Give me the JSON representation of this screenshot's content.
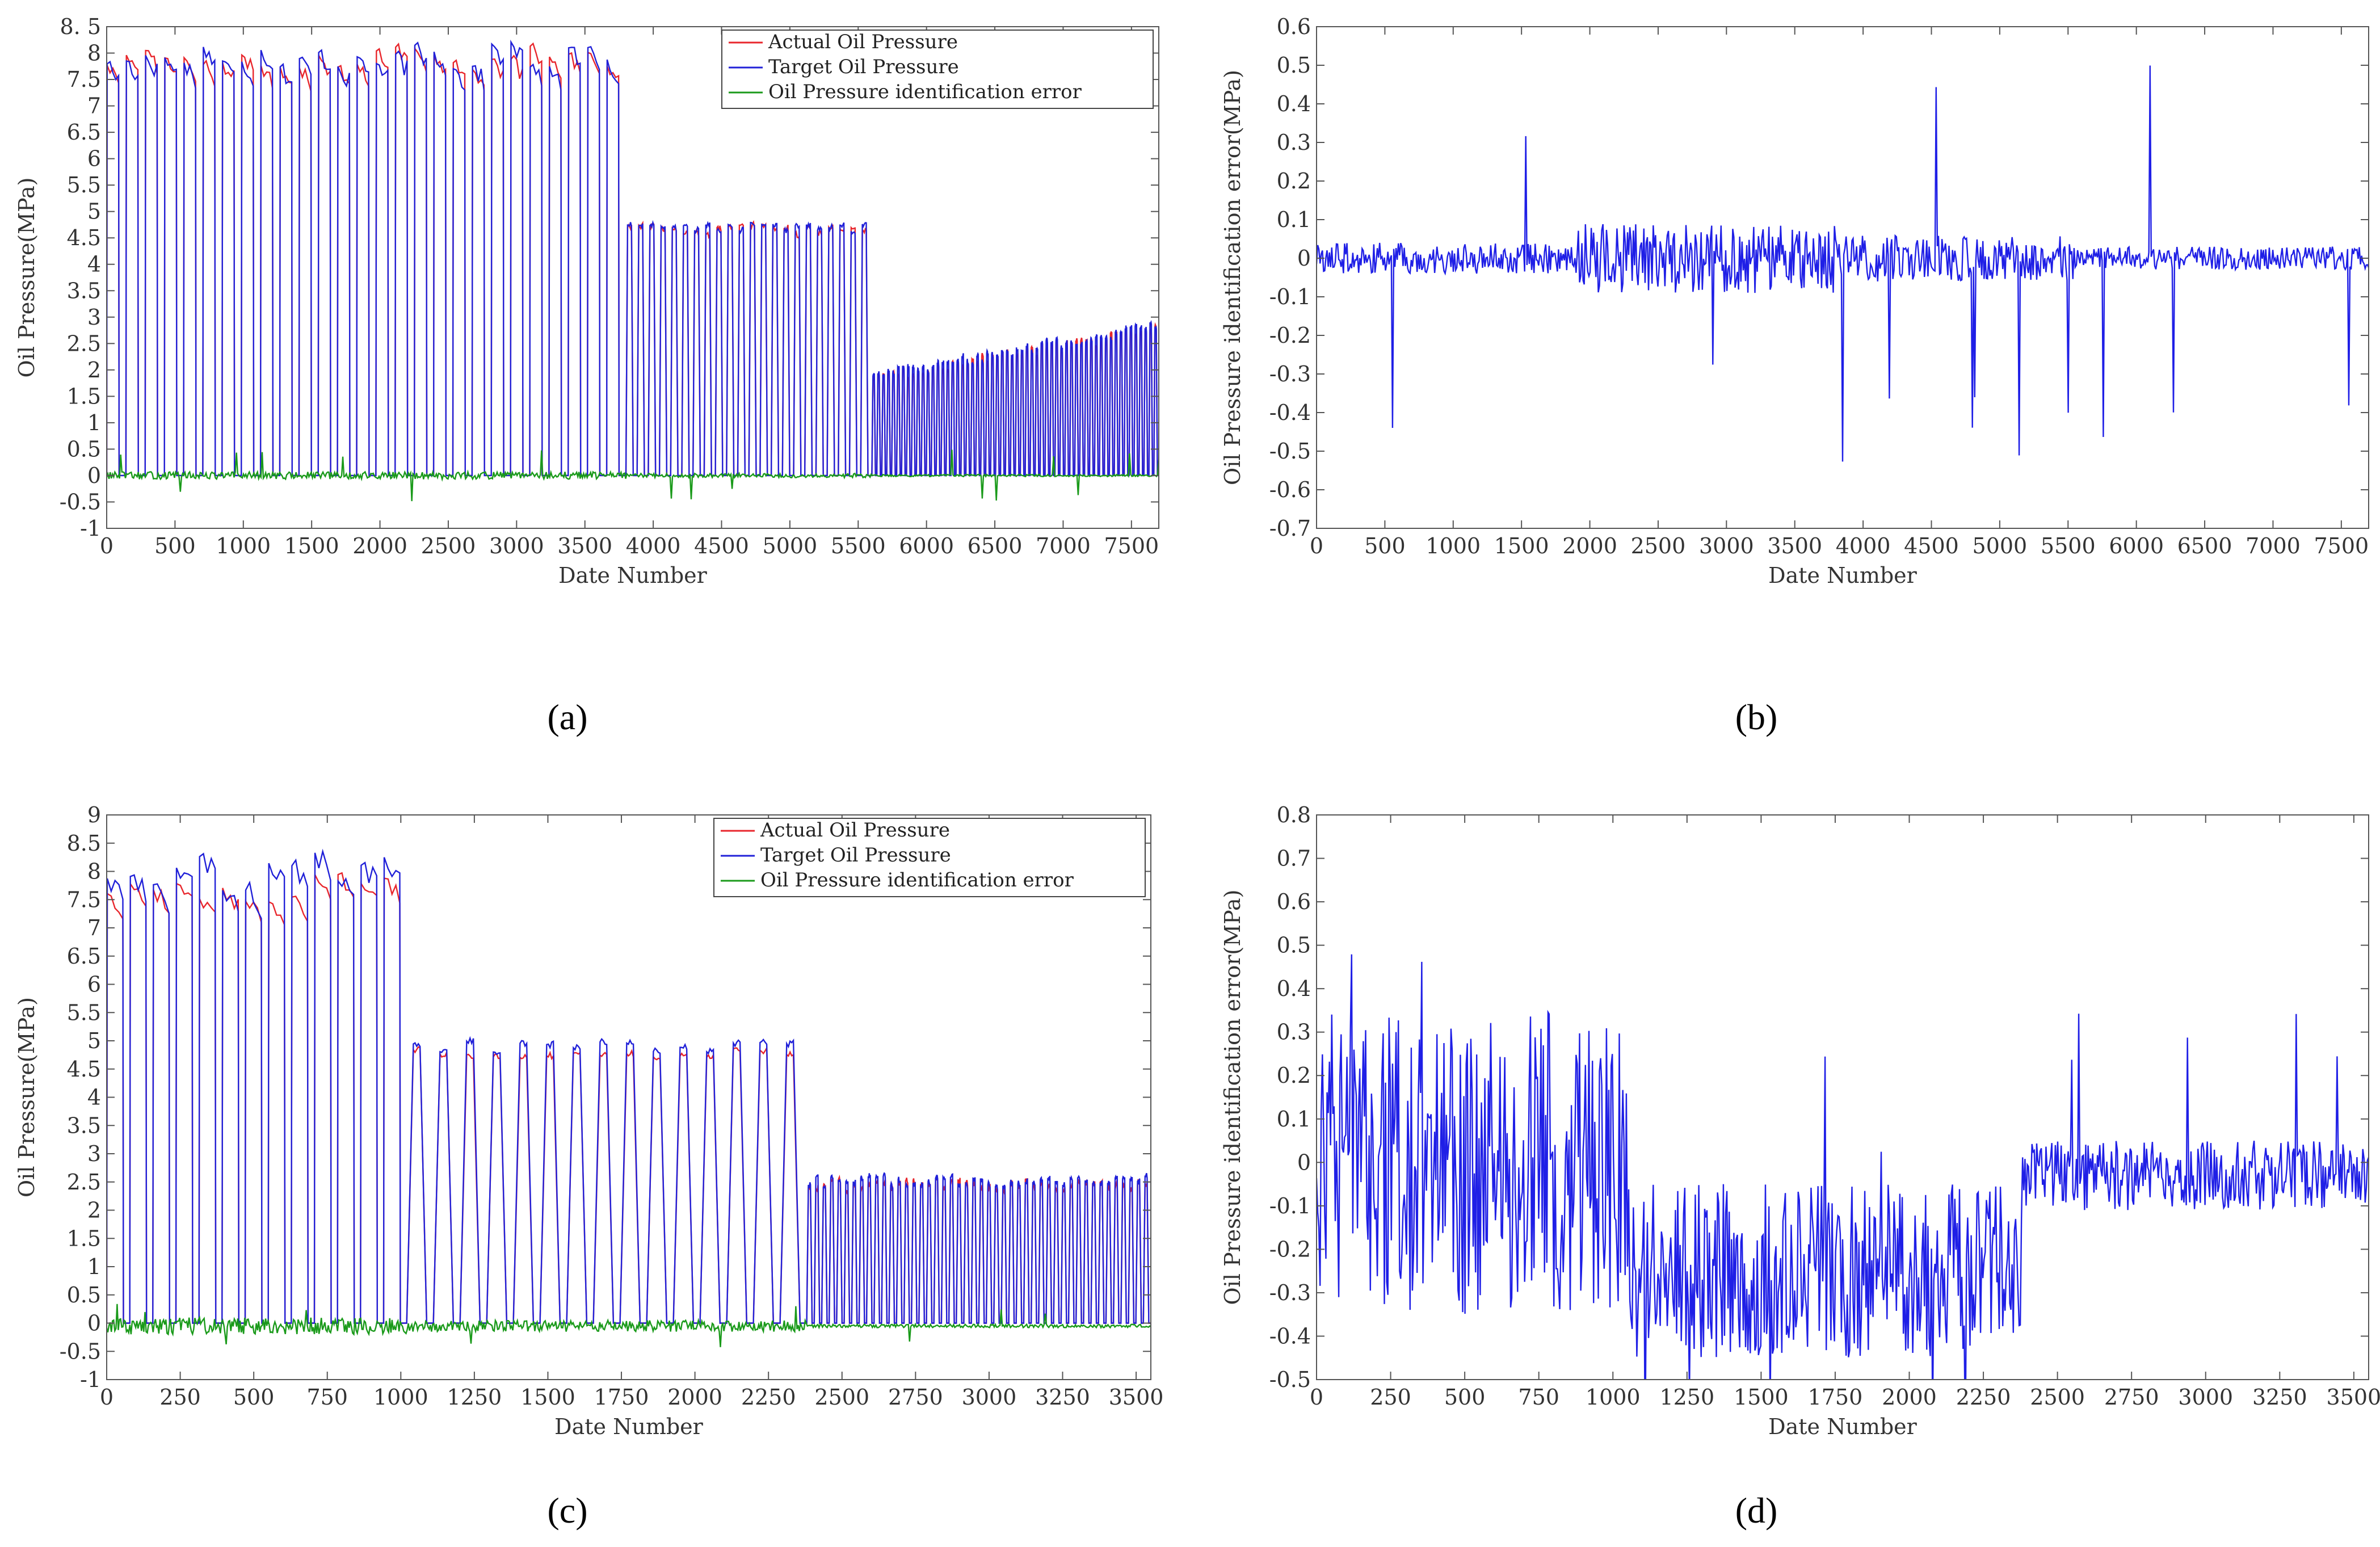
{
  "chart_data": [
    {
      "type": "line",
      "panel_label": "(a)",
      "xlabel": "Date Number",
      "ylabel": "Oil Pressure(MPa)",
      "xlim": [
        0,
        7700
      ],
      "ylim": [
        -1,
        8.5
      ],
      "xticks": [
        0,
        500,
        1000,
        1500,
        2000,
        2500,
        3000,
        3500,
        4000,
        4500,
        5000,
        5500,
        6000,
        6500,
        7000,
        7500
      ],
      "yticks": [
        -1,
        -0.5,
        0,
        0.5,
        1,
        1.5,
        2,
        2.5,
        3,
        3.5,
        4,
        4.5,
        5,
        5.5,
        6,
        6.5,
        7,
        7.5,
        8,
        8.5
      ],
      "ytick_labels": [
        "-1",
        "-0.5",
        "0",
        "0.5",
        "1",
        "1.5",
        "2",
        "2.5",
        "3",
        "3.5",
        "4",
        "4.5",
        "5",
        "5.5",
        "6",
        "6.5",
        "7",
        "7.5",
        "8",
        "8. 5"
      ],
      "legend": {
        "position": "top-right"
      },
      "series": [
        {
          "name": "Actual Oil Pressure",
          "color": "#e8262c",
          "shape": "pulses",
          "segments": [
            {
              "from": 0,
              "to": 3800,
              "count": 27,
              "high": 7.9,
              "high_var": 0.25,
              "low": 0.0,
              "duty": 0.62,
              "rise": 0.05,
              "drift": 0.3
            },
            {
              "from": 3800,
              "to": 5600,
              "count": 22,
              "high": 4.65,
              "high_var": 0.1,
              "low": 0.0,
              "duty": 0.5,
              "rise": 0.3,
              "drift": 0.0
            },
            {
              "from": 5600,
              "to": 7700,
              "count": 58,
              "high": 1.85,
              "high_rise": 0.9,
              "high_var": 0.1,
              "low": 0.0,
              "duty": 0.5,
              "rise": 0.45,
              "drift": 0.0
            }
          ]
        },
        {
          "name": "Target Oil Pressure",
          "color": "#2020d8",
          "shape": "pulses",
          "segments": [
            {
              "from": 0,
              "to": 3800,
              "count": 27,
              "high": 7.95,
              "high_var": 0.3,
              "low": 0.0,
              "duty": 0.62,
              "rise": 0.05,
              "drift": 0.3
            },
            {
              "from": 3800,
              "to": 5600,
              "count": 22,
              "high": 4.7,
              "high_var": 0.1,
              "low": 0.0,
              "duty": 0.5,
              "rise": 0.3,
              "drift": 0.0
            },
            {
              "from": 5600,
              "to": 7700,
              "count": 58,
              "high": 1.9,
              "high_rise": 0.9,
              "high_var": 0.1,
              "low": 0.0,
              "duty": 0.5,
              "rise": 0.45,
              "drift": 0.0
            }
          ]
        },
        {
          "name": "Oil Pressure identification error",
          "color": "#1a9a1a",
          "shape": "noise",
          "base": 0.0,
          "amp": 0.05,
          "spike_rate": 0.012,
          "spike_max": 0.5,
          "seg_breaks": [
            {
              "from": 0,
              "to": 3800,
              "amp": 0.07
            },
            {
              "from": 3800,
              "to": 5600,
              "amp": 0.04
            },
            {
              "from": 5600,
              "to": 7700,
              "amp": 0.02
            }
          ]
        }
      ]
    },
    {
      "type": "line",
      "panel_label": "(b)",
      "xlabel": "Date Number",
      "ylabel": "Oil Pressure identification error(MPa)",
      "xlim": [
        0,
        7700
      ],
      "ylim": [
        -0.7,
        0.6
      ],
      "xticks": [
        0,
        500,
        1000,
        1500,
        2000,
        2500,
        3000,
        3500,
        4000,
        4500,
        5000,
        5500,
        6000,
        6500,
        7000,
        7500
      ],
      "yticks": [
        -0.7,
        -0.6,
        -0.5,
        -0.4,
        -0.3,
        -0.2,
        -0.1,
        0,
        0.1,
        0.2,
        0.3,
        0.4,
        0.5,
        0.6
      ],
      "ytick_labels": [
        "-0.7",
        "-0.6",
        "-0.5",
        "-0.4",
        "-0.3",
        "-0.2",
        "-0.1",
        "0",
        "0.1",
        "0.2",
        "0.3",
        "0.4",
        "0.5",
        "0.6"
      ],
      "series": [
        {
          "name": "Oil Pressure identification error",
          "color": "#1f1fe6",
          "shape": "noise",
          "base": 0.0,
          "amp": 0.05,
          "spike_rate": 0.02,
          "spike_max": 0.55,
          "seg_breaks": [
            {
              "from": 0,
              "to": 1900,
              "amp": 0.04
            },
            {
              "from": 1900,
              "to": 3800,
              "amp": 0.09
            },
            {
              "from": 3800,
              "to": 5600,
              "amp": 0.06
            },
            {
              "from": 5600,
              "to": 7700,
              "amp": 0.03
            }
          ]
        }
      ]
    },
    {
      "type": "line",
      "panel_label": "(c)",
      "xlabel": "Date Number",
      "ylabel": "Oil Pressure(MPa)",
      "xlim": [
        0,
        3550
      ],
      "ylim": [
        -1,
        9
      ],
      "xticks": [
        0,
        250,
        500,
        750,
        1000,
        1250,
        1500,
        1750,
        2000,
        2250,
        2500,
        2750,
        3000,
        3250,
        3500
      ],
      "yticks": [
        -1,
        -0.5,
        0,
        0.5,
        1,
        1.5,
        2,
        2.5,
        3,
        3.5,
        4,
        4.5,
        5,
        5.5,
        6,
        6.5,
        7,
        7.5,
        8,
        8.5,
        9
      ],
      "ytick_labels": [
        "-1",
        "-0.5",
        "0",
        "0.5",
        "1",
        "1.5",
        "2",
        "2.5",
        "3",
        "3.5",
        "4",
        "4.5",
        "5",
        "5.5",
        "6",
        "6.5",
        "7",
        "7.5",
        "8",
        "8.5",
        "9"
      ],
      "legend": {
        "position": "top-right"
      },
      "series": [
        {
          "name": "Actual Oil Pressure",
          "color": "#e8262c",
          "shape": "pulses",
          "segments": [
            {
              "from": 0,
              "to": 1020,
              "count": 13,
              "high": 7.7,
              "high_var": 0.25,
              "low": 0.0,
              "duty": 0.7,
              "rise": 0.05,
              "drift": 0.3
            },
            {
              "from": 1020,
              "to": 2380,
              "count": 15,
              "high": 4.8,
              "high_var": 0.1,
              "low": 0.0,
              "duty": 0.5,
              "rise": 0.5,
              "drift": 0.0
            },
            {
              "from": 2380,
              "to": 3550,
              "count": 46,
              "high": 2.45,
              "high_var": 0.1,
              "low": 0.0,
              "duty": 0.5,
              "rise": 0.45,
              "drift": 0.0
            }
          ]
        },
        {
          "name": "Target Oil Pressure",
          "color": "#2020d8",
          "shape": "pulses",
          "segments": [
            {
              "from": 0,
              "to": 1020,
              "count": 13,
              "high": 8.0,
              "high_var": 0.35,
              "low": 0.0,
              "duty": 0.7,
              "rise": 0.05,
              "drift": 0.3
            },
            {
              "from": 1020,
              "to": 2380,
              "count": 15,
              "high": 4.9,
              "high_var": 0.1,
              "low": 0.0,
              "duty": 0.5,
              "rise": 0.5,
              "drift": 0.0
            },
            {
              "from": 2380,
              "to": 3550,
              "count": 46,
              "high": 2.5,
              "high_var": 0.1,
              "low": 0.0,
              "duty": 0.5,
              "rise": 0.45,
              "drift": 0.0
            }
          ]
        },
        {
          "name": "Oil Pressure identification error",
          "color": "#1a9a1a",
          "shape": "noise",
          "base": -0.05,
          "amp": 0.12,
          "spike_rate": 0.01,
          "spike_max": 0.4,
          "seg_breaks": [
            {
              "from": 0,
              "to": 1020,
              "amp": 0.15
            },
            {
              "from": 1020,
              "to": 2380,
              "amp": 0.1
            },
            {
              "from": 2380,
              "to": 3550,
              "amp": 0.03
            }
          ]
        }
      ]
    },
    {
      "type": "line",
      "panel_label": "(d)",
      "xlabel": "Date Number",
      "ylabel": "Oil Pressure identification error(MPa)",
      "xlim": [
        0,
        3550
      ],
      "ylim": [
        -0.5,
        0.8
      ],
      "xticks": [
        0,
        250,
        500,
        750,
        1000,
        1250,
        1500,
        1750,
        2000,
        2250,
        2500,
        2750,
        3000,
        3250,
        3500
      ],
      "yticks": [
        -0.5,
        -0.4,
        -0.3,
        -0.2,
        -0.1,
        0,
        0.1,
        0.2,
        0.3,
        0.4,
        0.5,
        0.6,
        0.7,
        0.8
      ],
      "ytick_labels": [
        "-0.5",
        "-0.4",
        "-0.3",
        "-0.2",
        "-0.1",
        "0",
        "0.1",
        "0.2",
        "0.3",
        "0.4",
        "0.5",
        "0.6",
        "0.7",
        "0.8"
      ],
      "series": [
        {
          "name": "Oil Pressure identification error",
          "color": "#1f1fe6",
          "shape": "noise",
          "base": -0.1,
          "amp": 0.2,
          "spike_rate": 0.03,
          "spike_max": 0.5,
          "seg_breaks": [
            {
              "from": 0,
              "to": 1050,
              "amp": 0.35,
              "base": 0.0
            },
            {
              "from": 1050,
              "to": 2380,
              "amp": 0.2,
              "base": -0.25
            },
            {
              "from": 2380,
              "to": 3550,
              "amp": 0.08,
              "base": -0.03
            }
          ]
        }
      ]
    }
  ]
}
